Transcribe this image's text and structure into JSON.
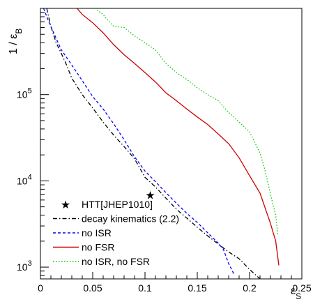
{
  "chart_data": {
    "type": "line",
    "ylog": true,
    "xlim": [
      0,
      0.25
    ],
    "ylim": [
      730,
      1000000
    ],
    "xlabel": {
      "main": "ε",
      "sub": "S"
    },
    "ylabel": {
      "main": "1 / ε",
      "sub": "B"
    },
    "x_ticks": [
      {
        "value": 0,
        "label": "0"
      },
      {
        "value": 0.05,
        "label": "0.05"
      },
      {
        "value": 0.1,
        "label": "0.1"
      },
      {
        "value": 0.15,
        "label": "0.15"
      },
      {
        "value": 0.2,
        "label": "0.2"
      },
      {
        "value": 0.25,
        "label": "0.25"
      }
    ],
    "y_ticks": [
      {
        "value": 1000,
        "base": "10",
        "exp": "3"
      },
      {
        "value": 10000,
        "base": "10",
        "exp": "4"
      },
      {
        "value": 100000,
        "base": "10",
        "exp": "5"
      }
    ],
    "grid": false,
    "legend_position": "bottom-left",
    "series": [
      {
        "name": "decay kinematics (2.2)",
        "color": "#000000",
        "style": "dashdot",
        "points": [
          [
            0.006,
            1000000
          ],
          [
            0.01,
            620000
          ],
          [
            0.015,
            400000
          ],
          [
            0.02,
            300000
          ],
          [
            0.025,
            220000
          ],
          [
            0.03,
            155000
          ],
          [
            0.04,
            100000
          ],
          [
            0.05,
            70000
          ],
          [
            0.06,
            48000
          ],
          [
            0.07,
            34000
          ],
          [
            0.08,
            25000
          ],
          [
            0.09,
            18000
          ],
          [
            0.1,
            11000
          ],
          [
            0.11,
            8500
          ],
          [
            0.12,
            6300
          ],
          [
            0.13,
            4700
          ],
          [
            0.14,
            3700
          ],
          [
            0.15,
            2900
          ],
          [
            0.16,
            2300
          ],
          [
            0.17,
            1850
          ],
          [
            0.18,
            1500
          ],
          [
            0.19,
            1250
          ],
          [
            0.2,
            940
          ],
          [
            0.21,
            730
          ]
        ]
      },
      {
        "name": "no ISR",
        "color": "#0000ff",
        "style": "dashed",
        "points": [
          [
            0.003,
            1000000
          ],
          [
            0.008,
            700000
          ],
          [
            0.015,
            450000
          ],
          [
            0.02,
            330000
          ],
          [
            0.03,
            220000
          ],
          [
            0.04,
            145000
          ],
          [
            0.05,
            95000
          ],
          [
            0.06,
            68000
          ],
          [
            0.07,
            46000
          ],
          [
            0.08,
            30000
          ],
          [
            0.09,
            19000
          ],
          [
            0.1,
            13000
          ],
          [
            0.11,
            9800
          ],
          [
            0.12,
            7300
          ],
          [
            0.13,
            5500
          ],
          [
            0.14,
            4200
          ],
          [
            0.15,
            3300
          ],
          [
            0.16,
            2500
          ],
          [
            0.17,
            1900
          ],
          [
            0.175,
            1600
          ],
          [
            0.18,
            1100
          ],
          [
            0.185,
            830
          ]
        ]
      },
      {
        "name": "no FSR",
        "color": "#cc0000",
        "style": "solid",
        "points": [
          [
            0.035,
            1000000
          ],
          [
            0.04,
            850000
          ],
          [
            0.05,
            680000
          ],
          [
            0.06,
            520000
          ],
          [
            0.07,
            380000
          ],
          [
            0.08,
            290000
          ],
          [
            0.09,
            230000
          ],
          [
            0.1,
            180000
          ],
          [
            0.11,
            140000
          ],
          [
            0.12,
            105000
          ],
          [
            0.13,
            85000
          ],
          [
            0.14,
            68000
          ],
          [
            0.15,
            55000
          ],
          [
            0.16,
            45000
          ],
          [
            0.17,
            35000
          ],
          [
            0.18,
            27000
          ],
          [
            0.19,
            18500
          ],
          [
            0.2,
            11500
          ],
          [
            0.21,
            7200
          ],
          [
            0.22,
            3200
          ],
          [
            0.225,
            2000
          ],
          [
            0.228,
            1050
          ]
        ]
      },
      {
        "name": "no ISR, no FSR",
        "color": "#00cc00",
        "style": "dotted",
        "points": [
          [
            0.052,
            1000000
          ],
          [
            0.06,
            850000
          ],
          [
            0.063,
            760000
          ],
          [
            0.07,
            620000
          ],
          [
            0.08,
            600000
          ],
          [
            0.09,
            480000
          ],
          [
            0.1,
            400000
          ],
          [
            0.11,
            330000
          ],
          [
            0.12,
            230000
          ],
          [
            0.13,
            180000
          ],
          [
            0.14,
            150000
          ],
          [
            0.15,
            120000
          ],
          [
            0.16,
            100000
          ],
          [
            0.17,
            85000
          ],
          [
            0.18,
            62000
          ],
          [
            0.19,
            48000
          ],
          [
            0.2,
            37000
          ],
          [
            0.21,
            21000
          ],
          [
            0.215,
            13000
          ],
          [
            0.22,
            7000
          ],
          [
            0.225,
            4000
          ],
          [
            0.227,
            2400
          ]
        ]
      }
    ],
    "markers": [
      {
        "name": "HTT[JHEP1010]",
        "symbol": "★",
        "x": 0.105,
        "y": 6900
      }
    ]
  }
}
